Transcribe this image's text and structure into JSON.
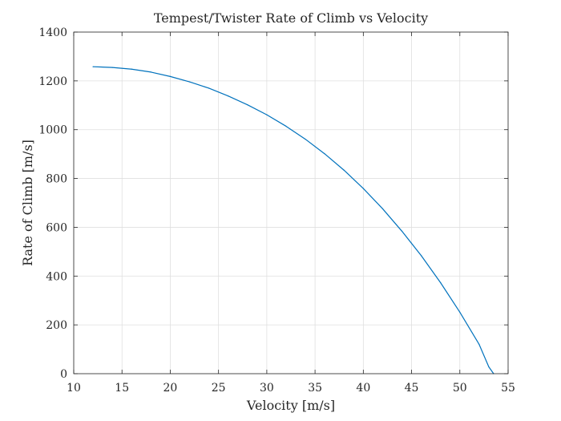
{
  "chart_data": {
    "type": "line",
    "title": "Tempest/Twister Rate of Climb vs Velocity",
    "xlabel": "Velocity [m/s]",
    "ylabel": "Rate of Climb [m/s]",
    "xlim": [
      10,
      55
    ],
    "ylim": [
      0,
      1400
    ],
    "xticks": [
      10,
      15,
      20,
      25,
      30,
      35,
      40,
      45,
      50,
      55
    ],
    "yticks": [
      0,
      200,
      400,
      600,
      800,
      1000,
      1200,
      1400
    ],
    "xtick_labels": [
      "10",
      "15",
      "20",
      "25",
      "30",
      "35",
      "40",
      "45",
      "50",
      "55"
    ],
    "ytick_labels": [
      "0",
      "200",
      "400",
      "600",
      "800",
      "1000",
      "1200",
      "1400"
    ],
    "grid": true,
    "series": [
      {
        "color": "#0072bd",
        "x": [
          12,
          14,
          16,
          18,
          20,
          22,
          24,
          26,
          28,
          30,
          32,
          34,
          36,
          38,
          40,
          42,
          44,
          46,
          48,
          50,
          52,
          53,
          53.5
        ],
        "y": [
          1258,
          1255,
          1248,
          1236,
          1218,
          1196,
          1170,
          1138,
          1102,
          1061,
          1014,
          961,
          901,
          834,
          759,
          676,
          584,
          484,
          373,
          252,
          120,
          28,
          0
        ]
      }
    ]
  }
}
